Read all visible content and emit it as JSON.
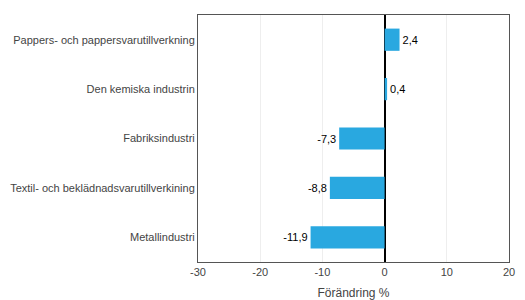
{
  "chart_data": {
    "type": "bar",
    "orientation": "horizontal",
    "categories": [
      "Metallindustri",
      "Textil- och beklädnadsvarutillverkining",
      "Fabriksindustri",
      "Den kemiska industrin",
      "Pappers- och pappersvarutillverkning"
    ],
    "values": [
      -11.9,
      -8.8,
      -7.3,
      0.4,
      2.4
    ],
    "value_labels": [
      "-11,9",
      "-8,8",
      "-7,3",
      "0,4",
      "2,4"
    ],
    "data_labels": true,
    "color": "#29a8e0",
    "xlabel": "Förändring %",
    "xlim": [
      -30,
      20
    ],
    "xticks": [
      -30,
      -20,
      -10,
      0,
      10,
      20
    ],
    "grid": true
  }
}
